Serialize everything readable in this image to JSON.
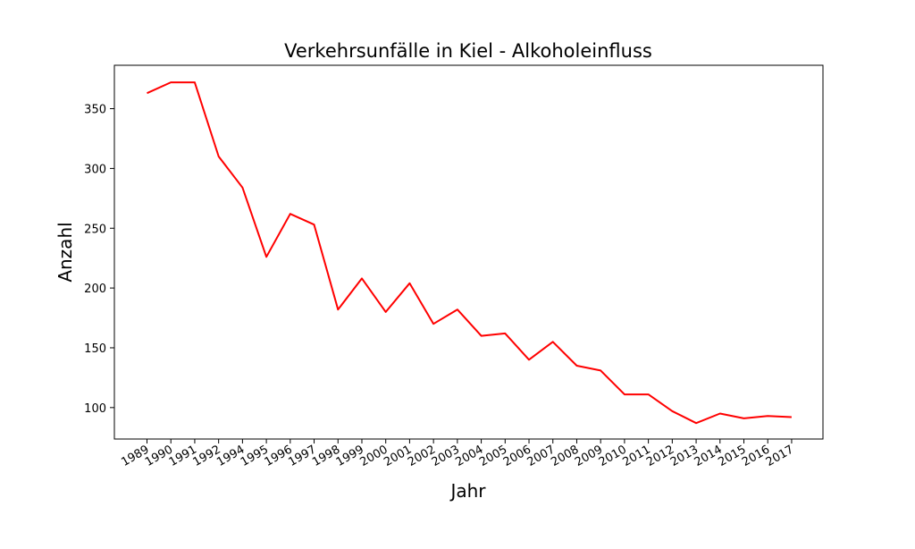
{
  "chart_data": {
    "type": "line",
    "title": "Verkehrsunfälle in Kiel - Alkoholeinfluss",
    "xlabel": "Jahr",
    "ylabel": "Anzahl",
    "categories": [
      "1989",
      "1990",
      "1991",
      "1992",
      "1994",
      "1995",
      "1996",
      "1997",
      "1998",
      "1999",
      "2000",
      "2001",
      "2002",
      "2003",
      "2004",
      "2005",
      "2006",
      "2007",
      "2008",
      "2009",
      "2010",
      "2011",
      "2012",
      "2013",
      "2014",
      "2015",
      "2016",
      "2017"
    ],
    "series": [
      {
        "color": "#ff0000",
        "values": [
          363,
          372,
          372,
          310,
          284,
          226,
          262,
          253,
          182,
          208,
          180,
          204,
          170,
          182,
          160,
          162,
          140,
          155,
          135,
          131,
          111,
          111,
          97,
          87,
          95,
          91,
          93,
          92
        ]
      }
    ],
    "yticks": [
      100,
      150,
      200,
      250,
      300,
      350
    ],
    "ylim": [
      73.7,
      386.3
    ],
    "grid": false,
    "legend": "none"
  }
}
